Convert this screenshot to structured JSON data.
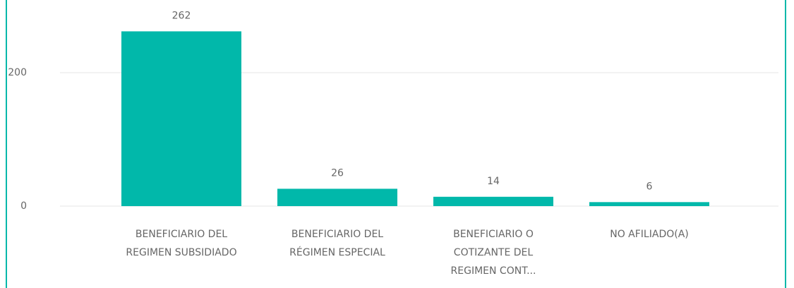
{
  "chart_data": {
    "type": "bar",
    "categories": [
      "BENEFICIARIO DEL REGIMEN SUBSIDIADO",
      "BENEFICIARIO DEL RÉGIMEN ESPECIAL",
      "BENEFICIARIO O COTIZANTE DEL REGIMEN CONT...",
      "NO AFILIADO(A)"
    ],
    "values": [
      262,
      26,
      14,
      6
    ],
    "color": "#01b8aa",
    "ylim": [
      0,
      300
    ],
    "yticks": [
      0,
      200
    ],
    "grid": true,
    "data_labels": true
  }
}
